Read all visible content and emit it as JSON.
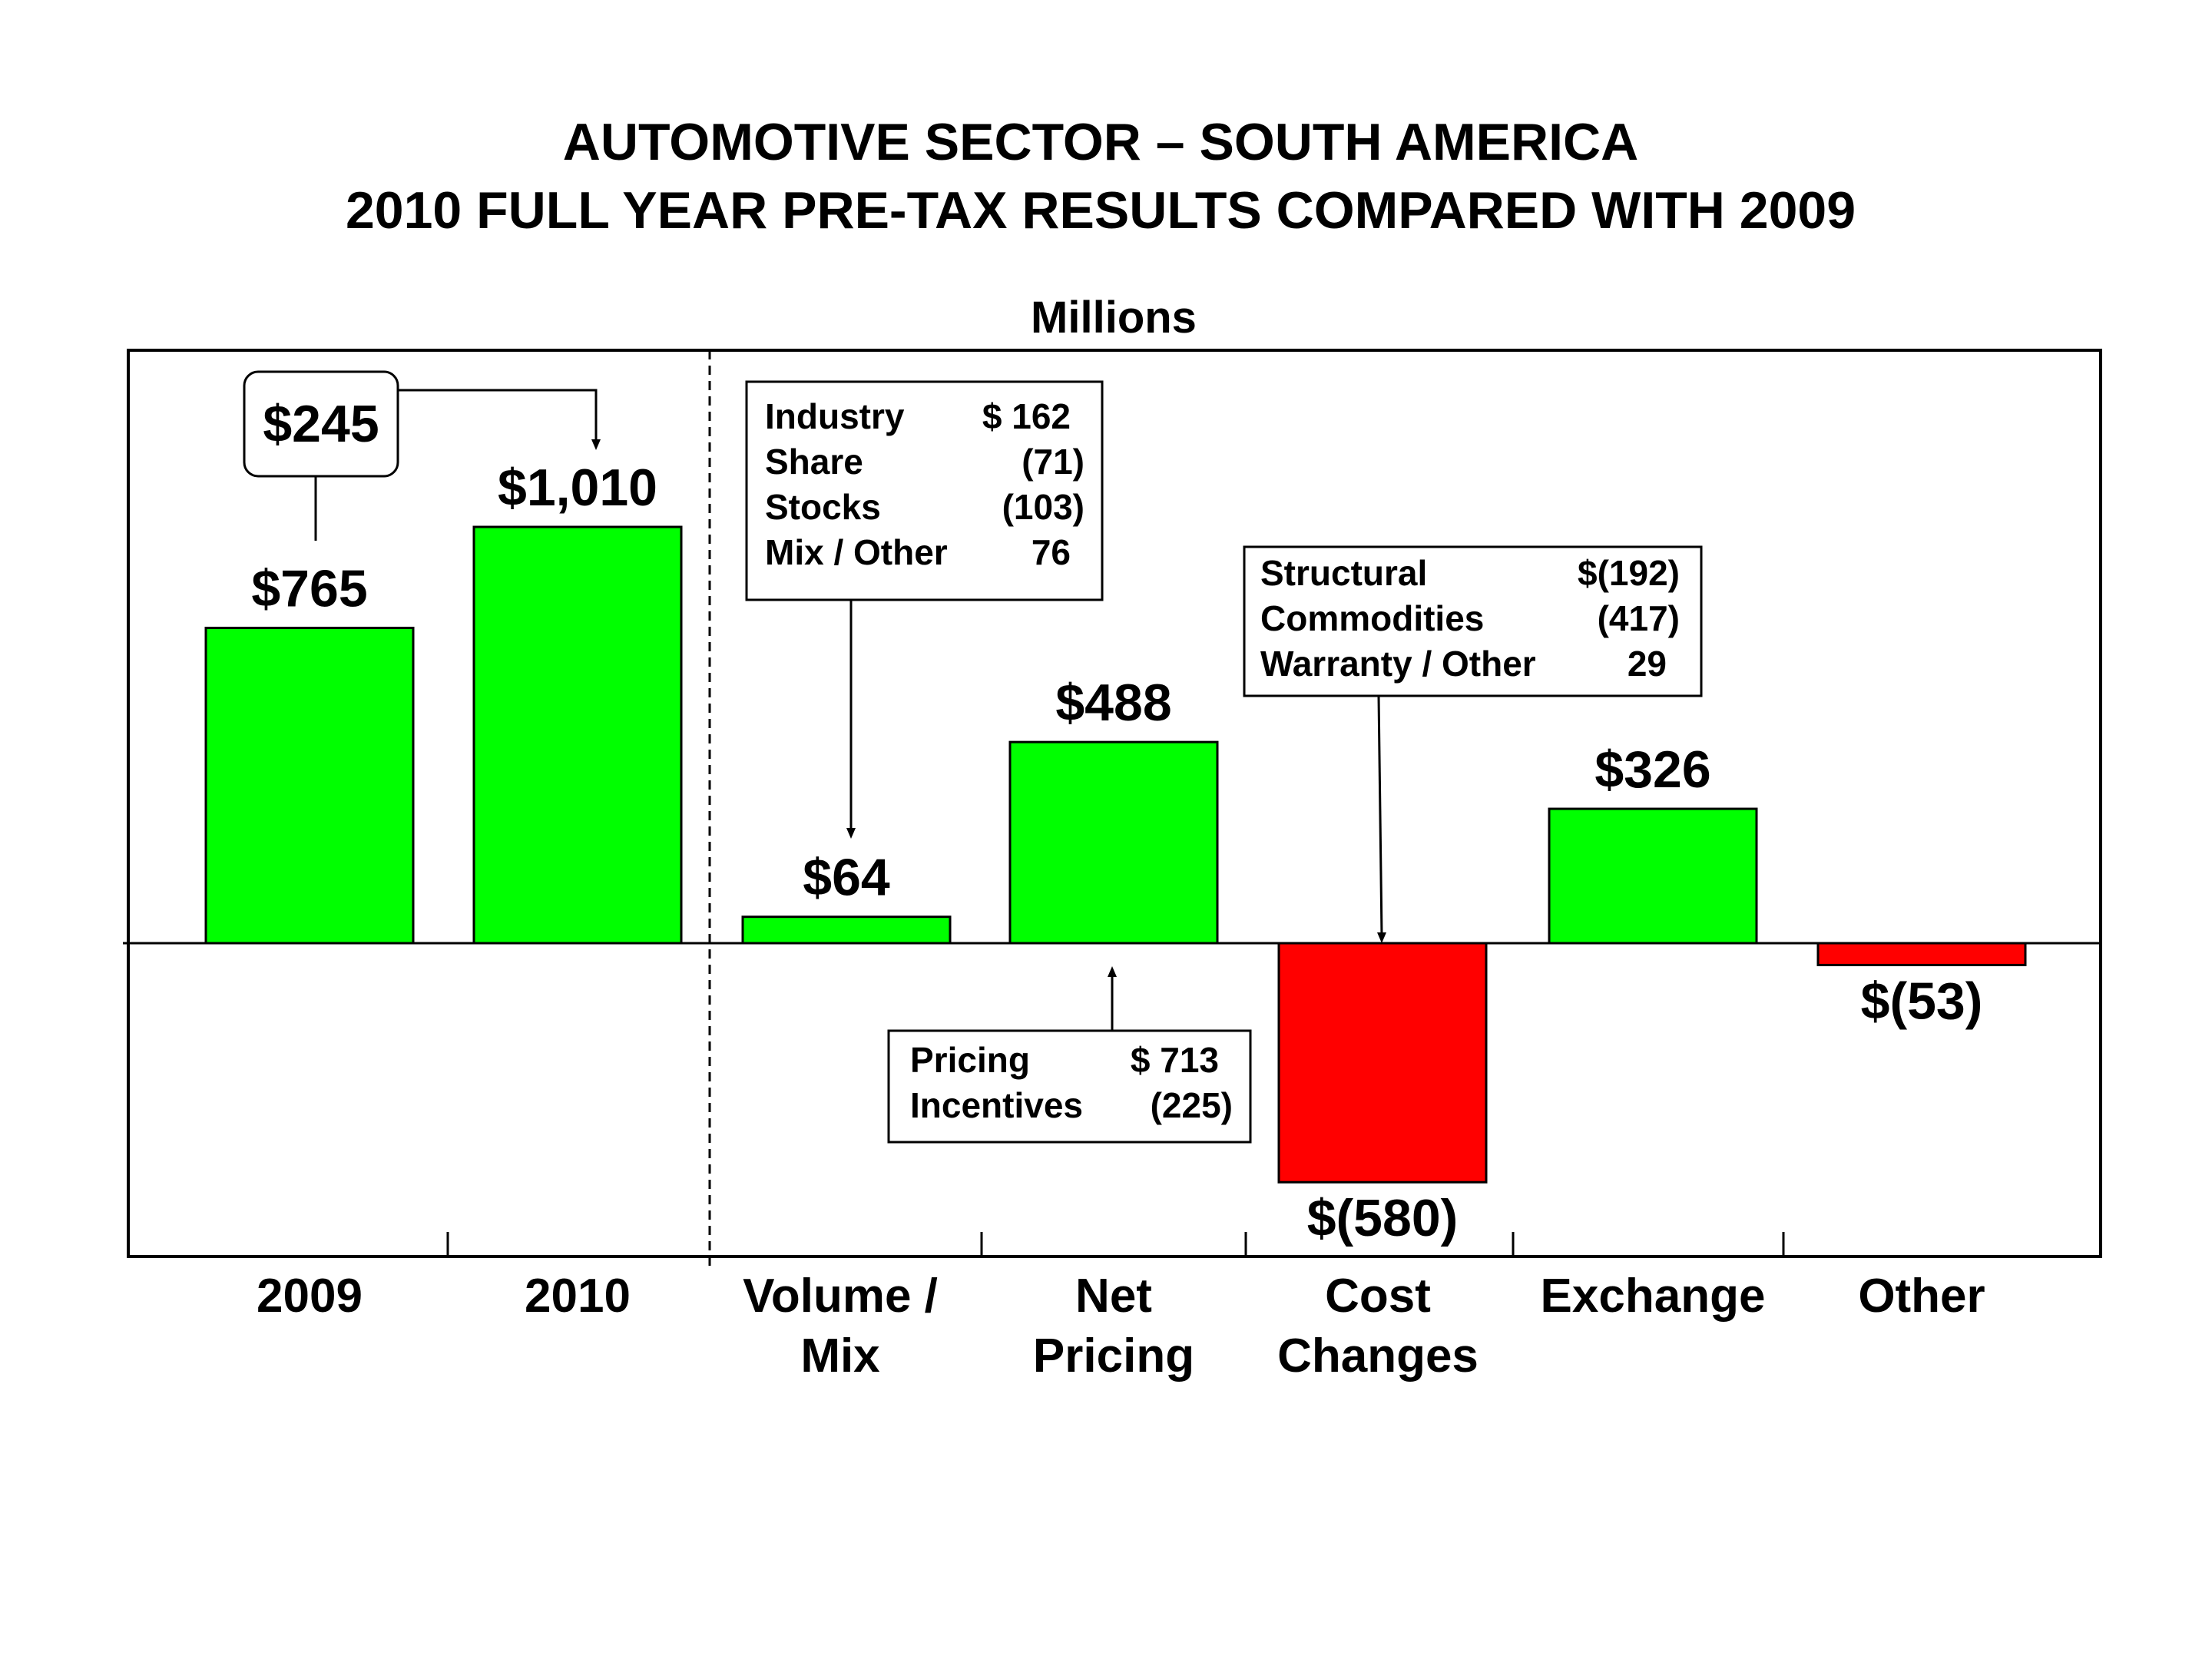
{
  "header": {
    "title_line1": "AUTOMOTIVE SECTOR – SOUTH AMERICA",
    "title_line2": "2010 FULL YEAR PRE-TAX RESULTS COMPARED WITH 2009",
    "units": "Millions"
  },
  "colors": {
    "positive": "#00ff00",
    "negative": "#ff0000",
    "frame": "#000000"
  },
  "chart_data": {
    "type": "bar",
    "title": "AUTOMOTIVE SECTOR – SOUTH AMERICA 2010 FULL YEAR PRE-TAX RESULTS COMPARED WITH 2009",
    "ylabel": "Millions",
    "ylim": [
      -770,
      1190
    ],
    "categories": [
      [
        "2009"
      ],
      [
        "2010"
      ],
      [
        "Volume /",
        "Mix"
      ],
      [
        "Net",
        "Pricing"
      ],
      [
        "Cost",
        "Changes"
      ],
      [
        "Exchange"
      ],
      [
        "Other"
      ]
    ],
    "values": [
      765,
      1010,
      64,
      488,
      -580,
      326,
      -53
    ],
    "value_labels": [
      "$765",
      "$1,010",
      "$64",
      "$488",
      "$(580)",
      "$326",
      "$(53)"
    ],
    "change_callout": {
      "label": "$245",
      "from": "2009",
      "to": "2010"
    },
    "breakdowns": [
      {
        "category": "Volume / Mix",
        "rows": [
          {
            "label": "Industry",
            "value": "$ 162"
          },
          {
            "label": "Share",
            "value": "(71)"
          },
          {
            "label": "Stocks",
            "value": "(103)"
          },
          {
            "label": "Mix / Other",
            "value": "76"
          }
        ]
      },
      {
        "category": "Cost Changes",
        "rows": [
          {
            "label": "Structural",
            "value": "$(192)"
          },
          {
            "label": "Commodities",
            "value": "(417)"
          },
          {
            "label": "Warranty / Other",
            "value": "29"
          }
        ]
      },
      {
        "category": "Net Pricing",
        "rows": [
          {
            "label": "Pricing",
            "value": "$ 713"
          },
          {
            "label": "Incentives",
            "value": "(225)"
          }
        ]
      }
    ]
  }
}
